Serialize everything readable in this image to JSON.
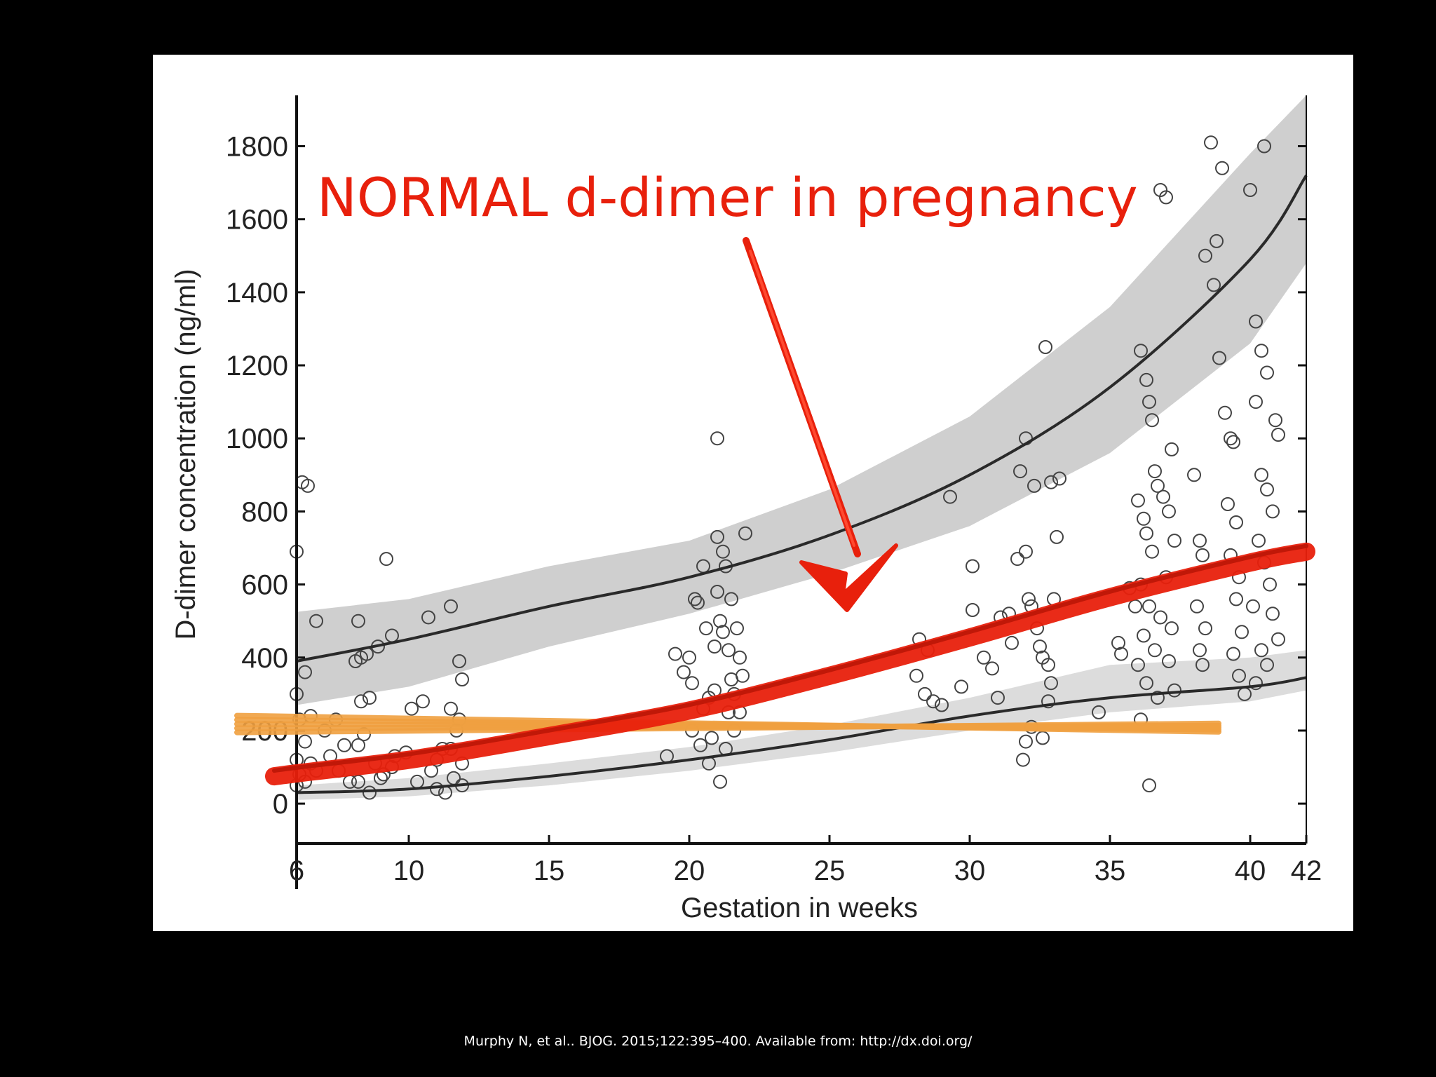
{
  "chart_data": {
    "type": "scatter",
    "title": "",
    "xlabel": "Gestation in weeks",
    "ylabel": "D-dimer concentration (ng/ml)",
    "xlim": [
      6,
      42
    ],
    "ylim": [
      -90,
      1920
    ],
    "xticks": [
      6,
      10,
      15,
      20,
      25,
      30,
      35,
      40,
      42
    ],
    "yticks": [
      0,
      200,
      400,
      600,
      800,
      1000,
      1200,
      1400,
      1600,
      1800
    ],
    "grid": false,
    "curves": {
      "x": [
        6,
        10,
        15,
        20,
        25,
        30,
        35,
        40,
        42
      ],
      "median": [
        30,
        40,
        75,
        120,
        175,
        240,
        290,
        320,
        345
      ],
      "upper": [
        390,
        450,
        540,
        620,
        735,
        900,
        1140,
        1490,
        1720
      ],
      "lower_normal_red": [
        85,
        120,
        185,
        255,
        350,
        455,
        565,
        660,
        690
      ],
      "band_upper_low": [
        270,
        320,
        430,
        520,
        630,
        760,
        960,
        1260,
        1480
      ],
      "band_upper_high": [
        525,
        560,
        650,
        720,
        860,
        1060,
        1360,
        1780,
        2100
      ],
      "band_lower_low": [
        10,
        20,
        50,
        90,
        140,
        200,
        250,
        280,
        310
      ],
      "band_lower_high": [
        50,
        70,
        110,
        155,
        215,
        290,
        380,
        400,
        420
      ]
    },
    "points": [
      [
        6,
        690
      ],
      [
        6.2,
        880
      ],
      [
        6.4,
        870
      ],
      [
        6.3,
        360
      ],
      [
        6.7,
        500
      ],
      [
        6,
        300
      ],
      [
        6.1,
        230
      ],
      [
        6.3,
        170
      ],
      [
        6.5,
        240
      ],
      [
        6,
        120
      ],
      [
        6.1,
        80
      ],
      [
        6.3,
        60
      ],
      [
        6.5,
        110
      ],
      [
        6,
        50
      ],
      [
        6.7,
        90
      ],
      [
        7.2,
        130
      ],
      [
        7.5,
        90
      ],
      [
        7.7,
        160
      ],
      [
        7.9,
        60
      ],
      [
        7,
        200
      ],
      [
        7.4,
        230
      ],
      [
        8.2,
        500
      ],
      [
        8.3,
        400
      ],
      [
        8.5,
        410
      ],
      [
        8.1,
        390
      ],
      [
        8.3,
        280
      ],
      [
        8.6,
        290
      ],
      [
        8.9,
        430
      ],
      [
        9.2,
        670
      ],
      [
        9.4,
        460
      ],
      [
        8.2,
        160
      ],
      [
        8.4,
        190
      ],
      [
        8.8,
        110
      ],
      [
        9.1,
        80
      ],
      [
        9.5,
        130
      ],
      [
        8.2,
        60
      ],
      [
        8.6,
        30
      ],
      [
        9,
        70
      ],
      [
        9.4,
        100
      ],
      [
        9.9,
        140
      ],
      [
        10.1,
        260
      ],
      [
        10.5,
        280
      ],
      [
        10.7,
        510
      ],
      [
        10.3,
        60
      ],
      [
        10.8,
        90
      ],
      [
        11,
        40
      ],
      [
        11.2,
        150
      ],
      [
        11.5,
        540
      ],
      [
        11.8,
        390
      ],
      [
        11.9,
        340
      ],
      [
        11.5,
        260
      ],
      [
        11.7,
        200
      ],
      [
        11.3,
        30
      ],
      [
        11.6,
        70
      ],
      [
        11.9,
        110
      ],
      [
        11.8,
        230
      ],
      [
        11.5,
        150
      ],
      [
        11.9,
        50
      ],
      [
        11,
        120
      ],
      [
        19.2,
        130
      ],
      [
        19.5,
        410
      ],
      [
        19.8,
        360
      ],
      [
        20,
        400
      ],
      [
        20.1,
        330
      ],
      [
        20.2,
        560
      ],
      [
        20.3,
        550
      ],
      [
        20.5,
        650
      ],
      [
        20.7,
        290
      ],
      [
        20.6,
        480
      ],
      [
        20.9,
        430
      ],
      [
        20.8,
        180
      ],
      [
        20.1,
        200
      ],
      [
        20.4,
        160
      ],
      [
        20.7,
        110
      ],
      [
        21,
        1000
      ],
      [
        21,
        730
      ],
      [
        21.2,
        690
      ],
      [
        21.3,
        650
      ],
      [
        21,
        580
      ],
      [
        21.1,
        500
      ],
      [
        21.2,
        470
      ],
      [
        21.4,
        420
      ],
      [
        21.5,
        340
      ],
      [
        21.6,
        300
      ],
      [
        21.5,
        560
      ],
      [
        21.7,
        480
      ],
      [
        21.8,
        400
      ],
      [
        21.9,
        350
      ],
      [
        22,
        740
      ],
      [
        21.4,
        250
      ],
      [
        21.6,
        200
      ],
      [
        21.3,
        150
      ],
      [
        21.1,
        60
      ],
      [
        21.8,
        250
      ],
      [
        20.5,
        260
      ],
      [
        20.9,
        310
      ],
      [
        28.2,
        450
      ],
      [
        28.5,
        420
      ],
      [
        28.1,
        350
      ],
      [
        28.4,
        300
      ],
      [
        28.7,
        280
      ],
      [
        29,
        270
      ],
      [
        29.3,
        840
      ],
      [
        29.7,
        320
      ],
      [
        30.1,
        650
      ],
      [
        30.1,
        530
      ],
      [
        30.5,
        400
      ],
      [
        30.8,
        370
      ],
      [
        31,
        290
      ],
      [
        31.1,
        510
      ],
      [
        31.4,
        520
      ],
      [
        31.5,
        440
      ],
      [
        31.8,
        910
      ],
      [
        31.7,
        670
      ],
      [
        32,
        1000
      ],
      [
        32,
        690
      ],
      [
        32.1,
        560
      ],
      [
        32.2,
        540
      ],
      [
        32.4,
        480
      ],
      [
        32.5,
        430
      ],
      [
        32.6,
        400
      ],
      [
        32.2,
        210
      ],
      [
        32,
        170
      ],
      [
        31.9,
        120
      ],
      [
        32.3,
        870
      ],
      [
        32.7,
        1250
      ],
      [
        32.9,
        880
      ],
      [
        33.2,
        890
      ],
      [
        32.8,
        380
      ],
      [
        32.9,
        330
      ],
      [
        32.8,
        280
      ],
      [
        32.6,
        180
      ],
      [
        33,
        560
      ],
      [
        33.1,
        730
      ],
      [
        34.6,
        250
      ],
      [
        35.3,
        440
      ],
      [
        35.4,
        410
      ],
      [
        35.7,
        590
      ],
      [
        35.9,
        540
      ],
      [
        36,
        830
      ],
      [
        36.2,
        780
      ],
      [
        36.1,
        1240
      ],
      [
        36.3,
        1160
      ],
      [
        36.4,
        1100
      ],
      [
        36.5,
        1050
      ],
      [
        36.6,
        910
      ],
      [
        36.7,
        870
      ],
      [
        36.9,
        840
      ],
      [
        36.3,
        740
      ],
      [
        36.5,
        690
      ],
      [
        36.1,
        600
      ],
      [
        36.4,
        540
      ],
      [
        36.8,
        510
      ],
      [
        36.2,
        460
      ],
      [
        36.6,
        420
      ],
      [
        36,
        380
      ],
      [
        36.3,
        330
      ],
      [
        36.7,
        290
      ],
      [
        36.1,
        230
      ],
      [
        36.4,
        50
      ],
      [
        36.8,
        1680
      ],
      [
        37,
        1660
      ],
      [
        37.2,
        970
      ],
      [
        37.1,
        800
      ],
      [
        37.3,
        720
      ],
      [
        37,
        620
      ],
      [
        37.2,
        480
      ],
      [
        37.1,
        390
      ],
      [
        37.3,
        310
      ],
      [
        38,
        900
      ],
      [
        38.2,
        720
      ],
      [
        38.3,
        680
      ],
      [
        38.1,
        540
      ],
      [
        38.4,
        480
      ],
      [
        38.2,
        420
      ],
      [
        38.3,
        380
      ],
      [
        38.6,
        1810
      ],
      [
        38.4,
        1500
      ],
      [
        38.7,
        1420
      ],
      [
        38.8,
        1540
      ],
      [
        38.9,
        1220
      ],
      [
        39,
        1740
      ],
      [
        39.1,
        1070
      ],
      [
        39.3,
        1000
      ],
      [
        39.4,
        990
      ],
      [
        39.2,
        820
      ],
      [
        39.5,
        770
      ],
      [
        39.3,
        680
      ],
      [
        39.6,
        620
      ],
      [
        39.5,
        560
      ],
      [
        39.7,
        470
      ],
      [
        39.4,
        410
      ],
      [
        39.6,
        350
      ],
      [
        39.8,
        300
      ],
      [
        40,
        1680
      ],
      [
        40.2,
        1320
      ],
      [
        40.4,
        1240
      ],
      [
        40.6,
        1180
      ],
      [
        40.2,
        1100
      ],
      [
        40.4,
        900
      ],
      [
        40.6,
        860
      ],
      [
        40.8,
        800
      ],
      [
        40.9,
        1050
      ],
      [
        41,
        1010
      ],
      [
        40.3,
        720
      ],
      [
        40.5,
        660
      ],
      [
        40.7,
        600
      ],
      [
        40.1,
        540
      ],
      [
        40.8,
        520
      ],
      [
        41,
        450
      ],
      [
        40.4,
        420
      ],
      [
        40.6,
        380
      ],
      [
        40.2,
        330
      ],
      [
        40.5,
        1800
      ]
    ]
  },
  "annotation": {
    "text": "NORMAL d-dimer in pregnancy",
    "color": "#e8200c",
    "highlight_color": "#f0a040"
  },
  "citation": "Murphy N,  et al.. BJOG. 2015;122:395–400. Available from: http://dx.doi.org/"
}
